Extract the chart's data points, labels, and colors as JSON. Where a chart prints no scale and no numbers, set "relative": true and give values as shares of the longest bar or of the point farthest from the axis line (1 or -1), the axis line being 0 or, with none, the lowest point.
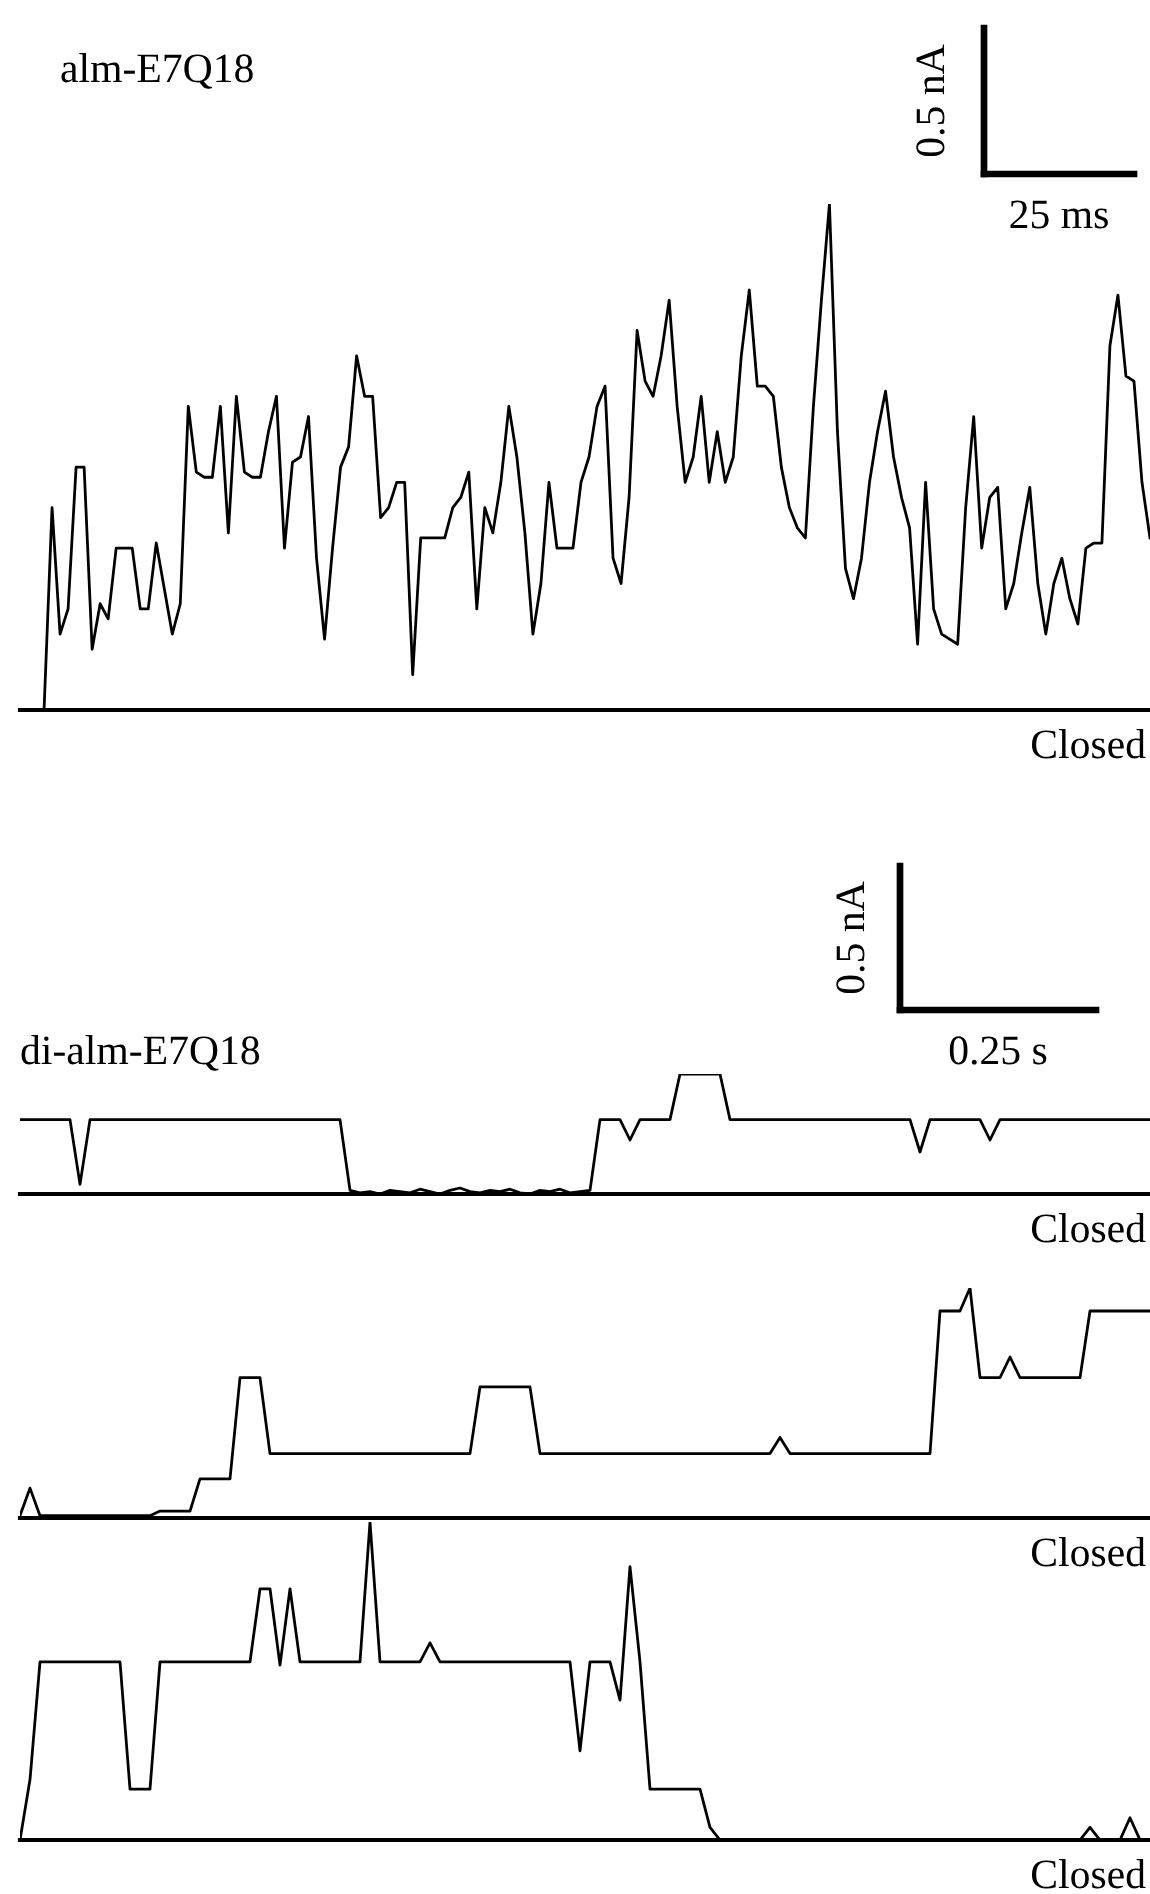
{
  "chart_data": [
    {
      "type": "line",
      "title": "alm-E7Q18",
      "relative": true,
      "color": "#000000",
      "tick_labels": false,
      "annotations": [
        "0.5 nA",
        "25 ms",
        "Closed"
      ],
      "categories": [
        null,
        null,
        null,
        null,
        null,
        null,
        null,
        null,
        null,
        null,
        null,
        null,
        null,
        null,
        null,
        null,
        null,
        null,
        null,
        null,
        null,
        null,
        null,
        null,
        null,
        null,
        null,
        null,
        null,
        null,
        null,
        null,
        null,
        null,
        null,
        null,
        null,
        null,
        null,
        null,
        null,
        null,
        null,
        null,
        null,
        null,
        null,
        null,
        null,
        null,
        null,
        null,
        null,
        null,
        null,
        null,
        null,
        null,
        null,
        null,
        null,
        null,
        null,
        null,
        null,
        null,
        null,
        null,
        null,
        null,
        null,
        null,
        null,
        null,
        null,
        null,
        null,
        null,
        null,
        null,
        null,
        null,
        null,
        null,
        null,
        null,
        null,
        null,
        null,
        null,
        null,
        null,
        null,
        null,
        null,
        null,
        null,
        null,
        null,
        null,
        null,
        null,
        null,
        null,
        null,
        null,
        null,
        null,
        null,
        null,
        null,
        null,
        null,
        null,
        null,
        null,
        null,
        null,
        null,
        null,
        null,
        null,
        null,
        null,
        null,
        null,
        null,
        null,
        null,
        null,
        null,
        null,
        null,
        null,
        null,
        null,
        null,
        null,
        null,
        null,
        null,
        null
      ],
      "values": [
        0,
        0,
        0,
        0,
        0.4,
        0.15,
        0.2,
        0.48,
        0.48,
        0.12,
        0.21,
        0.18,
        0.32,
        0.32,
        0.32,
        0.2,
        0.2,
        0.33,
        0.24,
        0.15,
        0.21,
        0.6,
        0.47,
        0.46,
        0.46,
        0.6,
        0.35,
        0.62,
        0.47,
        0.46,
        0.46,
        0.55,
        0.62,
        0.32,
        0.49,
        0.5,
        0.58,
        0.3,
        0.14,
        0.32,
        0.48,
        0.52,
        0.7,
        0.62,
        0.62,
        0.38,
        0.4,
        0.45,
        0.45,
        0.07,
        0.34,
        0.34,
        0.34,
        0.34,
        0.4,
        0.42,
        0.47,
        0.2,
        0.4,
        0.35,
        0.45,
        0.6,
        0.5,
        0.35,
        0.15,
        0.25,
        0.45,
        0.32,
        0.32,
        0.32,
        0.45,
        0.5,
        0.6,
        0.64,
        0.3,
        0.25,
        0.42,
        0.75,
        0.65,
        0.62,
        0.7,
        0.81,
        0.6,
        0.45,
        0.5,
        0.62,
        0.45,
        0.55,
        0.45,
        0.5,
        0.7,
        0.83,
        0.64,
        0.64,
        0.62,
        0.48,
        0.4,
        0.36,
        0.34,
        0.6,
        0.81,
        1.0,
        0.55,
        0.28,
        0.22,
        0.3,
        0.45,
        0.55,
        0.63,
        0.5,
        0.42,
        0.36,
        0.13,
        0.45,
        0.2,
        0.15,
        0.14,
        0.13,
        0.4,
        0.58,
        0.32,
        0.42,
        0.44,
        0.2,
        0.25,
        0.35,
        0.44,
        0.25,
        0.15,
        0.25,
        0.3,
        0.22,
        0.17,
        0.32,
        0.33,
        0.33,
        0.72,
        0.82,
        0.66,
        0.65,
        0.45,
        0.34
      ]
    },
    {
      "type": "line",
      "title": "di-alm-E7Q18",
      "relative": true,
      "color": "#000000",
      "tick_labels": false,
      "annotations": [
        "0.5 nA",
        "0.25 s",
        "Closed"
      ],
      "categories": [
        null,
        null,
        null,
        null,
        null,
        null,
        null,
        null,
        null,
        null,
        null,
        null,
        null,
        null,
        null,
        null,
        null,
        null,
        null,
        null,
        null,
        null,
        null,
        null,
        null,
        null,
        null,
        null,
        null,
        null,
        null,
        null,
        null,
        null,
        null,
        null,
        null,
        null,
        null,
        null,
        null,
        null,
        null,
        null,
        null,
        null,
        null,
        null,
        null,
        null,
        null,
        null,
        null,
        null,
        null,
        null,
        null,
        null,
        null,
        null,
        null,
        null,
        null,
        null,
        null,
        null,
        null,
        null,
        null,
        null,
        null,
        null,
        null,
        null,
        null,
        null,
        null,
        null,
        null,
        null,
        null,
        null,
        null,
        null,
        null,
        null,
        null,
        null,
        null,
        null,
        null,
        null,
        null,
        null,
        null,
        null,
        null,
        null,
        null,
        null,
        null,
        null,
        null,
        null,
        null,
        null,
        null,
        null,
        null,
        null,
        null,
        null,
        null,
        null
      ],
      "values": [
        0.62,
        0.62,
        0.62,
        0.62,
        0.62,
        0.62,
        0.08,
        0.62,
        0.62,
        0.62,
        0.62,
        0.62,
        0.62,
        0.62,
        0.62,
        0.62,
        0.62,
        0.62,
        0.62,
        0.62,
        0.62,
        0.62,
        0.62,
        0.62,
        0.62,
        0.62,
        0.62,
        0.62,
        0.62,
        0.62,
        0.62,
        0.62,
        0.62,
        0.03,
        0.01,
        0.02,
        0.0,
        0.03,
        0.02,
        0.01,
        0.04,
        0.02,
        0.0,
        0.03,
        0.05,
        0.02,
        0.01,
        0.03,
        0.02,
        0.04,
        0.01,
        0.0,
        0.03,
        0.02,
        0.04,
        0.01,
        0.02,
        0.03,
        0.62,
        0.62,
        0.62,
        0.45,
        0.62,
        0.62,
        0.62,
        0.62,
        1.0,
        1.0,
        1.0,
        1.0,
        1.0,
        0.62,
        0.62,
        0.62,
        0.62,
        0.62,
        0.62,
        0.62,
        0.62,
        0.62,
        0.62,
        0.62,
        0.62,
        0.62,
        0.62,
        0.62,
        0.62,
        0.62,
        0.62,
        0.62,
        0.35,
        0.62,
        0.62,
        0.62,
        0.62,
        0.62,
        0.62,
        0.45,
        0.62,
        0.62,
        0.62,
        0.62,
        0.62,
        0.62,
        0.62,
        0.62,
        0.62,
        0.62,
        0.62,
        0.62,
        0.62,
        0.62,
        0.62,
        0.62
      ]
    },
    {
      "type": "line",
      "relative": true,
      "color": "#000000",
      "tick_labels": false,
      "annotations": [
        "Closed"
      ],
      "categories": [
        null,
        null,
        null,
        null,
        null,
        null,
        null,
        null,
        null,
        null,
        null,
        null,
        null,
        null,
        null,
        null,
        null,
        null,
        null,
        null,
        null,
        null,
        null,
        null,
        null,
        null,
        null,
        null,
        null,
        null,
        null,
        null,
        null,
        null,
        null,
        null,
        null,
        null,
        null,
        null,
        null,
        null,
        null,
        null,
        null,
        null,
        null,
        null,
        null,
        null,
        null,
        null,
        null,
        null,
        null,
        null,
        null,
        null,
        null,
        null,
        null,
        null,
        null,
        null,
        null,
        null,
        null,
        null,
        null,
        null,
        null,
        null,
        null,
        null,
        null,
        null,
        null,
        null,
        null,
        null,
        null,
        null,
        null,
        null,
        null,
        null,
        null,
        null,
        null,
        null,
        null,
        null,
        null,
        null,
        null,
        null,
        null,
        null,
        null,
        null,
        null,
        null,
        null,
        null,
        null,
        null,
        null,
        null,
        null,
        null,
        null,
        null,
        null,
        null
      ],
      "values": [
        0.01,
        0.13,
        0.01,
        0.01,
        0.01,
        0.01,
        0.01,
        0.01,
        0.01,
        0.01,
        0.01,
        0.01,
        0.01,
        0.01,
        0.03,
        0.03,
        0.03,
        0.03,
        0.17,
        0.17,
        0.17,
        0.17,
        0.61,
        0.61,
        0.61,
        0.28,
        0.28,
        0.28,
        0.28,
        0.28,
        0.28,
        0.28,
        0.28,
        0.28,
        0.28,
        0.28,
        0.28,
        0.28,
        0.28,
        0.28,
        0.28,
        0.28,
        0.28,
        0.28,
        0.28,
        0.28,
        0.57,
        0.57,
        0.57,
        0.57,
        0.57,
        0.57,
        0.28,
        0.28,
        0.28,
        0.28,
        0.28,
        0.28,
        0.28,
        0.28,
        0.28,
        0.28,
        0.28,
        0.28,
        0.28,
        0.28,
        0.28,
        0.28,
        0.28,
        0.28,
        0.28,
        0.28,
        0.28,
        0.28,
        0.28,
        0.28,
        0.35,
        0.28,
        0.28,
        0.28,
        0.28,
        0.28,
        0.28,
        0.28,
        0.28,
        0.28,
        0.28,
        0.28,
        0.28,
        0.28,
        0.28,
        0.28,
        0.9,
        0.9,
        0.9,
        1.0,
        0.61,
        0.61,
        0.61,
        0.7,
        0.61,
        0.61,
        0.61,
        0.61,
        0.61,
        0.61,
        0.61,
        0.9,
        0.9,
        0.9,
        0.9,
        0.9,
        0.9,
        0.9
      ]
    },
    {
      "type": "line",
      "relative": true,
      "color": "#000000",
      "tick_labels": false,
      "annotations": [
        "Closed"
      ],
      "categories": [
        null,
        null,
        null,
        null,
        null,
        null,
        null,
        null,
        null,
        null,
        null,
        null,
        null,
        null,
        null,
        null,
        null,
        null,
        null,
        null,
        null,
        null,
        null,
        null,
        null,
        null,
        null,
        null,
        null,
        null,
        null,
        null,
        null,
        null,
        null,
        null,
        null,
        null,
        null,
        null,
        null,
        null,
        null,
        null,
        null,
        null,
        null,
        null,
        null,
        null,
        null,
        null,
        null,
        null,
        null,
        null,
        null,
        null,
        null,
        null,
        null,
        null,
        null,
        null,
        null,
        null,
        null,
        null,
        null,
        null,
        null,
        null,
        null,
        null,
        null,
        null,
        null,
        null,
        null,
        null,
        null,
        null,
        null,
        null,
        null,
        null,
        null,
        null,
        null,
        null,
        null,
        null,
        null,
        null,
        null,
        null,
        null,
        null,
        null,
        null,
        null,
        null,
        null,
        null,
        null,
        null,
        null,
        null,
        null,
        null,
        null,
        null,
        null,
        null
      ],
      "values": [
        0,
        0.19,
        0.56,
        0.56,
        0.56,
        0.56,
        0.56,
        0.56,
        0.56,
        0.56,
        0.56,
        0.16,
        0.16,
        0.16,
        0.56,
        0.56,
        0.56,
        0.56,
        0.56,
        0.56,
        0.56,
        0.56,
        0.56,
        0.56,
        0.79,
        0.79,
        0.55,
        0.79,
        0.56,
        0.56,
        0.56,
        0.56,
        0.56,
        0.56,
        0.56,
        1.0,
        0.56,
        0.56,
        0.56,
        0.56,
        0.56,
        0.62,
        0.56,
        0.56,
        0.56,
        0.56,
        0.56,
        0.56,
        0.56,
        0.56,
        0.56,
        0.56,
        0.56,
        0.56,
        0.56,
        0.56,
        0.28,
        0.56,
        0.56,
        0.56,
        0.44,
        0.86,
        0.56,
        0.16,
        0.16,
        0.16,
        0.16,
        0.16,
        0.16,
        0.04,
        0,
        0,
        0,
        0,
        0,
        0,
        0,
        0,
        0,
        0,
        0,
        0,
        0,
        0,
        0,
        0,
        0,
        0,
        0,
        0,
        0,
        0,
        0,
        0,
        0,
        0,
        0,
        0,
        0,
        0,
        0,
        0,
        0,
        0,
        0,
        0,
        0,
        0.04,
        0,
        0,
        0,
        0.07,
        0,
        0
      ]
    }
  ]
}
